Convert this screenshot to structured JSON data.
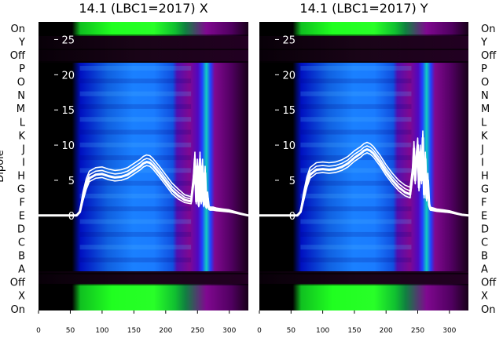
{
  "chart_data": {
    "type": "heatmap",
    "ylabel": "Dipole",
    "left_dipole_labels": [
      "On",
      "Y",
      "Off",
      "P",
      "O",
      "N",
      "M",
      "L",
      "K",
      "J",
      "I",
      "H",
      "G",
      "F",
      "E",
      "D",
      "C",
      "B",
      "A",
      "Off",
      "X",
      "On"
    ],
    "right_dipole_labels": [
      "On",
      "Y",
      "Off",
      "P",
      "O",
      "N",
      "M",
      "L",
      "K",
      "J",
      "I",
      "H",
      "G",
      "F",
      "E",
      "D",
      "C",
      "B",
      "A",
      "Off",
      "X",
      "On"
    ],
    "xlim": [
      0,
      330
    ],
    "ylim": [
      -13.5,
      27.5
    ],
    "x_ticks": [
      0,
      50,
      100,
      150,
      200,
      250,
      300
    ],
    "y_ticks": [
      0,
      5,
      10,
      15,
      20,
      25
    ],
    "panels": [
      {
        "title": "14.1 (LBC1=2017) X",
        "overlay_curve": {
          "x": [
            0,
            60,
            65,
            70,
            75,
            80,
            90,
            100,
            110,
            120,
            130,
            140,
            150,
            160,
            165,
            170,
            175,
            180,
            190,
            200,
            210,
            220,
            230,
            240,
            244,
            246,
            248,
            250,
            252,
            254,
            256,
            258,
            260,
            262,
            264,
            266,
            268,
            270,
            275,
            280,
            290,
            300,
            310,
            320,
            330
          ],
          "y": [
            0,
            0,
            0.5,
            2.5,
            4.2,
            5.3,
            5.8,
            5.9,
            5.6,
            5.4,
            5.5,
            5.8,
            6.4,
            7.0,
            7.4,
            7.6,
            7.5,
            7.1,
            6.0,
            4.8,
            3.6,
            2.8,
            2.2,
            2.0,
            5.0,
            8.0,
            2.0,
            7.0,
            1.5,
            8.0,
            2.0,
            7.0,
            1.5,
            6.0,
            1.2,
            2.5,
            1.0,
            0.9,
            0.9,
            0.8,
            0.7,
            0.6,
            0.4,
            0.2,
            0.0
          ]
        }
      },
      {
        "title": "14.1 (LBC1=2017) Y",
        "overlay_curve": {
          "x": [
            0,
            60,
            65,
            70,
            75,
            80,
            90,
            100,
            110,
            120,
            130,
            140,
            150,
            160,
            165,
            170,
            175,
            180,
            190,
            200,
            210,
            220,
            230,
            238,
            242,
            244,
            246,
            248,
            250,
            252,
            254,
            256,
            258,
            260,
            262,
            264,
            266,
            268,
            270,
            275,
            280,
            290,
            300,
            310,
            320,
            330
          ],
          "y": [
            0,
            0,
            0.5,
            2.5,
            4.5,
            5.8,
            6.5,
            6.6,
            6.5,
            6.6,
            6.9,
            7.4,
            8.2,
            8.8,
            9.2,
            9.4,
            9.2,
            8.8,
            7.6,
            6.2,
            5.0,
            4.0,
            3.3,
            3.0,
            6.0,
            9.5,
            5.0,
            8.0,
            10.0,
            4.0,
            9.0,
            5.0,
            11.0,
            3.0,
            8.0,
            2.5,
            5.0,
            1.5,
            0.9,
            0.8,
            0.7,
            0.6,
            0.5,
            0.3,
            0.1,
            0.0
          ]
        }
      }
    ]
  }
}
